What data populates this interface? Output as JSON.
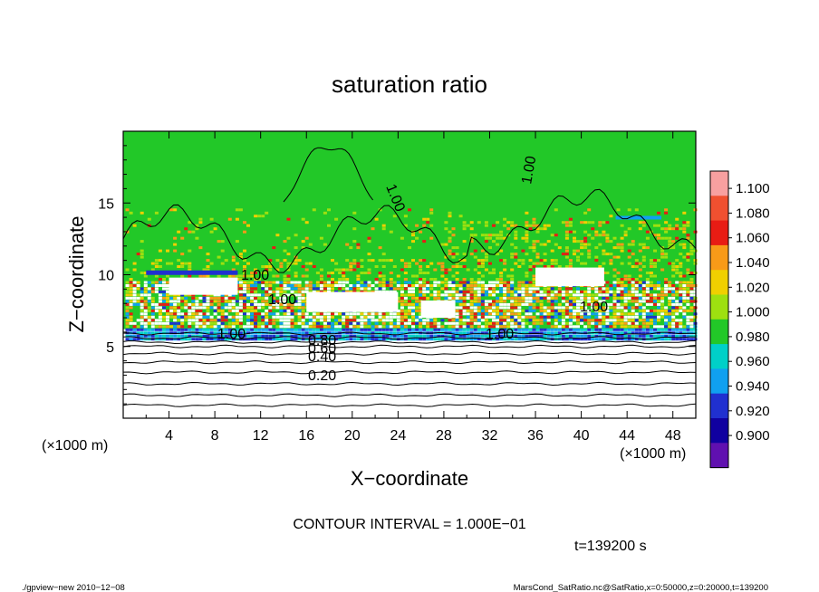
{
  "chart_data": {
    "type": "heatmap",
    "title": "saturation ratio",
    "xlabel": "X−coordinate",
    "ylabel": "Z−coordinate",
    "x_unit_left": "(×1000 m)",
    "x_unit_right": "(×1000 m)",
    "xlim": [
      0,
      50
    ],
    "ylim": [
      0,
      20
    ],
    "x_ticks": [
      4,
      8,
      12,
      16,
      20,
      24,
      28,
      32,
      36,
      40,
      44,
      48
    ],
    "y_ticks": [
      5,
      10,
      15
    ],
    "colorbar": {
      "levels": [
        "1.100",
        "1.080",
        "1.060",
        "1.040",
        "1.020",
        "1.000",
        "0.980",
        "0.960",
        "0.940",
        "0.920",
        "0.900"
      ],
      "colors": [
        "#f8a0a0",
        "#f05030",
        "#e81c14",
        "#f89a18",
        "#f0d000",
        "#9ee010",
        "#22c828",
        "#00d0c8",
        "#10a0f0",
        "#2030d0",
        "#1000a0",
        "#6010b0"
      ]
    },
    "contour_labels": [
      "1.00",
      "1.00",
      "1.00",
      "1.00",
      "1.00",
      "1.00",
      "1.00",
      "0.80",
      "0.60",
      "0.40",
      "0.20"
    ],
    "contour_interval_text": "CONTOUR INTERVAL = 1.000E−01",
    "time_text": "t=139200 s"
  },
  "footer": {
    "left": "./gpview−new  2010−12−08",
    "right": "MarsCond_SatRatio.nc@SatRatio,x=0:50000,z=0:20000,t=139200"
  }
}
